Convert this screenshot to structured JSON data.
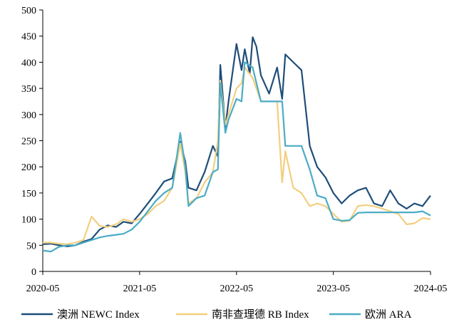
{
  "chart_data": {
    "type": "line",
    "title": "",
    "xlabel": "",
    "ylabel": "",
    "ylim": [
      0,
      500
    ],
    "yticks": [
      0,
      50,
      100,
      150,
      200,
      250,
      300,
      350,
      400,
      450,
      500
    ],
    "xticks": [
      "2020-05",
      "2021-05",
      "2022-05",
      "2023-05",
      "2024-05"
    ],
    "xlim": [
      "2020-05",
      "2024-05"
    ],
    "grid": false,
    "legend_position": "bottom",
    "series": [
      {
        "name": "澳洲 NEWC Index",
        "color": "#1f4e79",
        "points": [
          [
            "2020-05",
            52
          ],
          [
            "2020-06",
            53
          ],
          [
            "2020-07",
            50
          ],
          [
            "2020-08",
            48
          ],
          [
            "2020-09",
            50
          ],
          [
            "2020-10",
            57
          ],
          [
            "2020-11",
            62
          ],
          [
            "2020-12",
            80
          ],
          [
            "2021-01",
            88
          ],
          [
            "2021-02",
            85
          ],
          [
            "2021-03",
            95
          ],
          [
            "2021-04",
            92
          ],
          [
            "2021-05",
            110
          ],
          [
            "2021-06",
            130
          ],
          [
            "2021-07",
            150
          ],
          [
            "2021-08",
            172
          ],
          [
            "2021-09",
            178
          ],
          [
            "2021-10",
            248
          ],
          [
            "2021-10-20",
            210
          ],
          [
            "2021-11",
            160
          ],
          [
            "2021-12",
            155
          ],
          [
            "2022-01",
            190
          ],
          [
            "2022-02",
            240
          ],
          [
            "2022-02-20",
            220
          ],
          [
            "2022-03",
            395
          ],
          [
            "2022-03-20",
            275
          ],
          [
            "2022-04",
            325
          ],
          [
            "2022-05",
            435
          ],
          [
            "2022-05-20",
            385
          ],
          [
            "2022-06",
            425
          ],
          [
            "2022-06-20",
            378
          ],
          [
            "2022-07",
            448
          ],
          [
            "2022-07-15",
            430
          ],
          [
            "2022-08",
            375
          ],
          [
            "2022-09",
            340
          ],
          [
            "2022-10",
            390
          ],
          [
            "2022-10-20",
            330
          ],
          [
            "2022-11",
            415
          ],
          [
            "2022-12",
            400
          ],
          [
            "2023-01",
            385
          ],
          [
            "2023-02",
            240
          ],
          [
            "2023-03",
            200
          ],
          [
            "2023-04",
            180
          ],
          [
            "2023-05",
            150
          ],
          [
            "2023-06",
            130
          ],
          [
            "2023-07",
            145
          ],
          [
            "2023-08",
            155
          ],
          [
            "2023-09",
            160
          ],
          [
            "2023-10",
            130
          ],
          [
            "2023-11",
            125
          ],
          [
            "2023-12",
            155
          ],
          [
            "2024-01",
            130
          ],
          [
            "2024-02",
            120
          ],
          [
            "2024-03",
            130
          ],
          [
            "2024-04",
            125
          ],
          [
            "2024-05",
            145
          ]
        ]
      },
      {
        "name": "南非查理德 RB Index",
        "color": "#f2cf7f",
        "points": [
          [
            "2020-05",
            55
          ],
          [
            "2020-06",
            55
          ],
          [
            "2020-07",
            53
          ],
          [
            "2020-08",
            52
          ],
          [
            "2020-09",
            55
          ],
          [
            "2020-10",
            60
          ],
          [
            "2020-11",
            105
          ],
          [
            "2020-12",
            87
          ],
          [
            "2021-01",
            85
          ],
          [
            "2021-02",
            90
          ],
          [
            "2021-03",
            100
          ],
          [
            "2021-04",
            95
          ],
          [
            "2021-05",
            100
          ],
          [
            "2021-06",
            110
          ],
          [
            "2021-07",
            125
          ],
          [
            "2021-08",
            135
          ],
          [
            "2021-09",
            160
          ],
          [
            "2021-10",
            245
          ],
          [
            "2021-10-20",
            190
          ],
          [
            "2021-11",
            130
          ],
          [
            "2021-12",
            140
          ],
          [
            "2022-01",
            170
          ],
          [
            "2022-02",
            190
          ],
          [
            "2022-02-20",
            250
          ],
          [
            "2022-03",
            365
          ],
          [
            "2022-03-20",
            280
          ],
          [
            "2022-04",
            300
          ],
          [
            "2022-05",
            350
          ],
          [
            "2022-05-20",
            360
          ],
          [
            "2022-06",
            390
          ],
          [
            "2022-07",
            370
          ],
          [
            "2022-07-15",
            350
          ],
          [
            "2022-08",
            325
          ],
          [
            "2022-09",
            325
          ],
          [
            "2022-10",
            325
          ],
          [
            "2022-10-20",
            170
          ],
          [
            "2022-11",
            230
          ],
          [
            "2022-12",
            160
          ],
          [
            "2023-01",
            150
          ],
          [
            "2023-02",
            125
          ],
          [
            "2023-03",
            130
          ],
          [
            "2023-04",
            125
          ],
          [
            "2023-05",
            110
          ],
          [
            "2023-06",
            95
          ],
          [
            "2023-07",
            97
          ],
          [
            "2023-08",
            125
          ],
          [
            "2023-09",
            127
          ],
          [
            "2023-10",
            125
          ],
          [
            "2023-11",
            120
          ],
          [
            "2023-12",
            115
          ],
          [
            "2024-01",
            110
          ],
          [
            "2024-02",
            90
          ],
          [
            "2024-03",
            92
          ],
          [
            "2024-04",
            102
          ],
          [
            "2024-05",
            100
          ]
        ]
      },
      {
        "name": "欧洲 ARA",
        "color": "#4bacc6",
        "points": [
          [
            "2020-05",
            40
          ],
          [
            "2020-06",
            38
          ],
          [
            "2020-07",
            47
          ],
          [
            "2020-08",
            50
          ],
          [
            "2020-09",
            50
          ],
          [
            "2020-10",
            55
          ],
          [
            "2020-11",
            60
          ],
          [
            "2020-12",
            65
          ],
          [
            "2021-01",
            68
          ],
          [
            "2021-02",
            70
          ],
          [
            "2021-03",
            72
          ],
          [
            "2021-04",
            80
          ],
          [
            "2021-05",
            95
          ],
          [
            "2021-06",
            115
          ],
          [
            "2021-07",
            135
          ],
          [
            "2021-08",
            150
          ],
          [
            "2021-09",
            160
          ],
          [
            "2021-10",
            265
          ],
          [
            "2021-10-20",
            200
          ],
          [
            "2021-11",
            125
          ],
          [
            "2021-12",
            140
          ],
          [
            "2022-01",
            145
          ],
          [
            "2022-02",
            190
          ],
          [
            "2022-02-20",
            195
          ],
          [
            "2022-03",
            360
          ],
          [
            "2022-03-20",
            265
          ],
          [
            "2022-04",
            290
          ],
          [
            "2022-05",
            330
          ],
          [
            "2022-05-20",
            325
          ],
          [
            "2022-06",
            400
          ],
          [
            "2022-07",
            390
          ],
          [
            "2022-08",
            325
          ],
          [
            "2022-09",
            325
          ],
          [
            "2022-10",
            325
          ],
          [
            "2022-10-20",
            325
          ],
          [
            "2022-11",
            240
          ],
          [
            "2022-12",
            240
          ],
          [
            "2023-01",
            240
          ],
          [
            "2023-02",
            195
          ],
          [
            "2023-03",
            145
          ],
          [
            "2023-04",
            140
          ],
          [
            "2023-05",
            100
          ],
          [
            "2023-06",
            97
          ],
          [
            "2023-07",
            98
          ],
          [
            "2023-08",
            112
          ],
          [
            "2023-09",
            113
          ],
          [
            "2023-10",
            113
          ],
          [
            "2023-11",
            113
          ],
          [
            "2023-12",
            113
          ],
          [
            "2024-01",
            113
          ],
          [
            "2024-02",
            113
          ],
          [
            "2024-03",
            113
          ],
          [
            "2024-04",
            115
          ],
          [
            "2024-05",
            107
          ]
        ]
      }
    ]
  }
}
